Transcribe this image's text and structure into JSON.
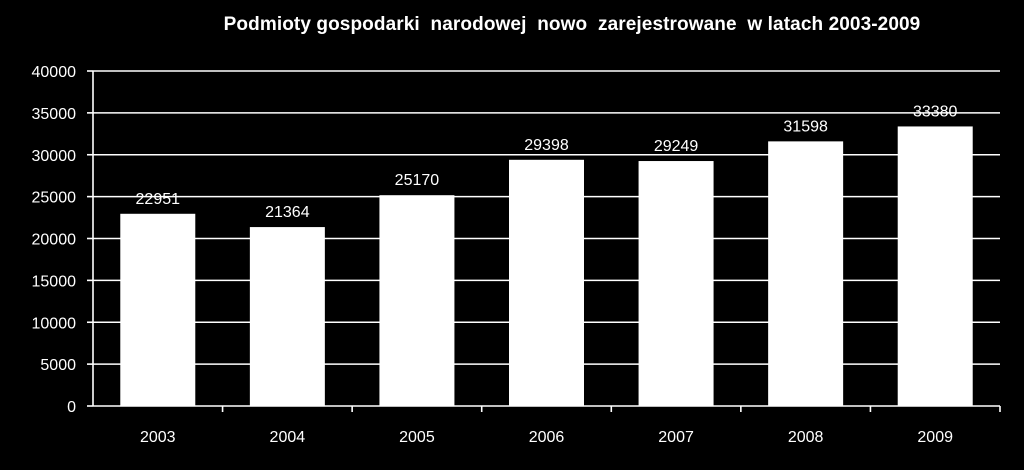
{
  "chart_data": {
    "type": "bar",
    "title": "Podmioty gospodarki  narodowej  nowo  zarejestrowane  w latach 2003-2009",
    "xlabel": "",
    "ylabel": "",
    "categories": [
      "2003",
      "2004",
      "2005",
      "2006",
      "2007",
      "2008",
      "2009"
    ],
    "values": [
      22951,
      21364,
      25170,
      29398,
      29249,
      31598,
      33380
    ],
    "ylim": [
      0,
      40000
    ],
    "yticks": [
      0,
      5000,
      10000,
      15000,
      20000,
      25000,
      30000,
      35000,
      40000
    ],
    "grid": true,
    "legend": "none",
    "data_labels": true
  },
  "colors": {
    "background": "#000000",
    "bar": "#ffffff",
    "text": "#ffffff",
    "gridline": "#ffffff"
  }
}
